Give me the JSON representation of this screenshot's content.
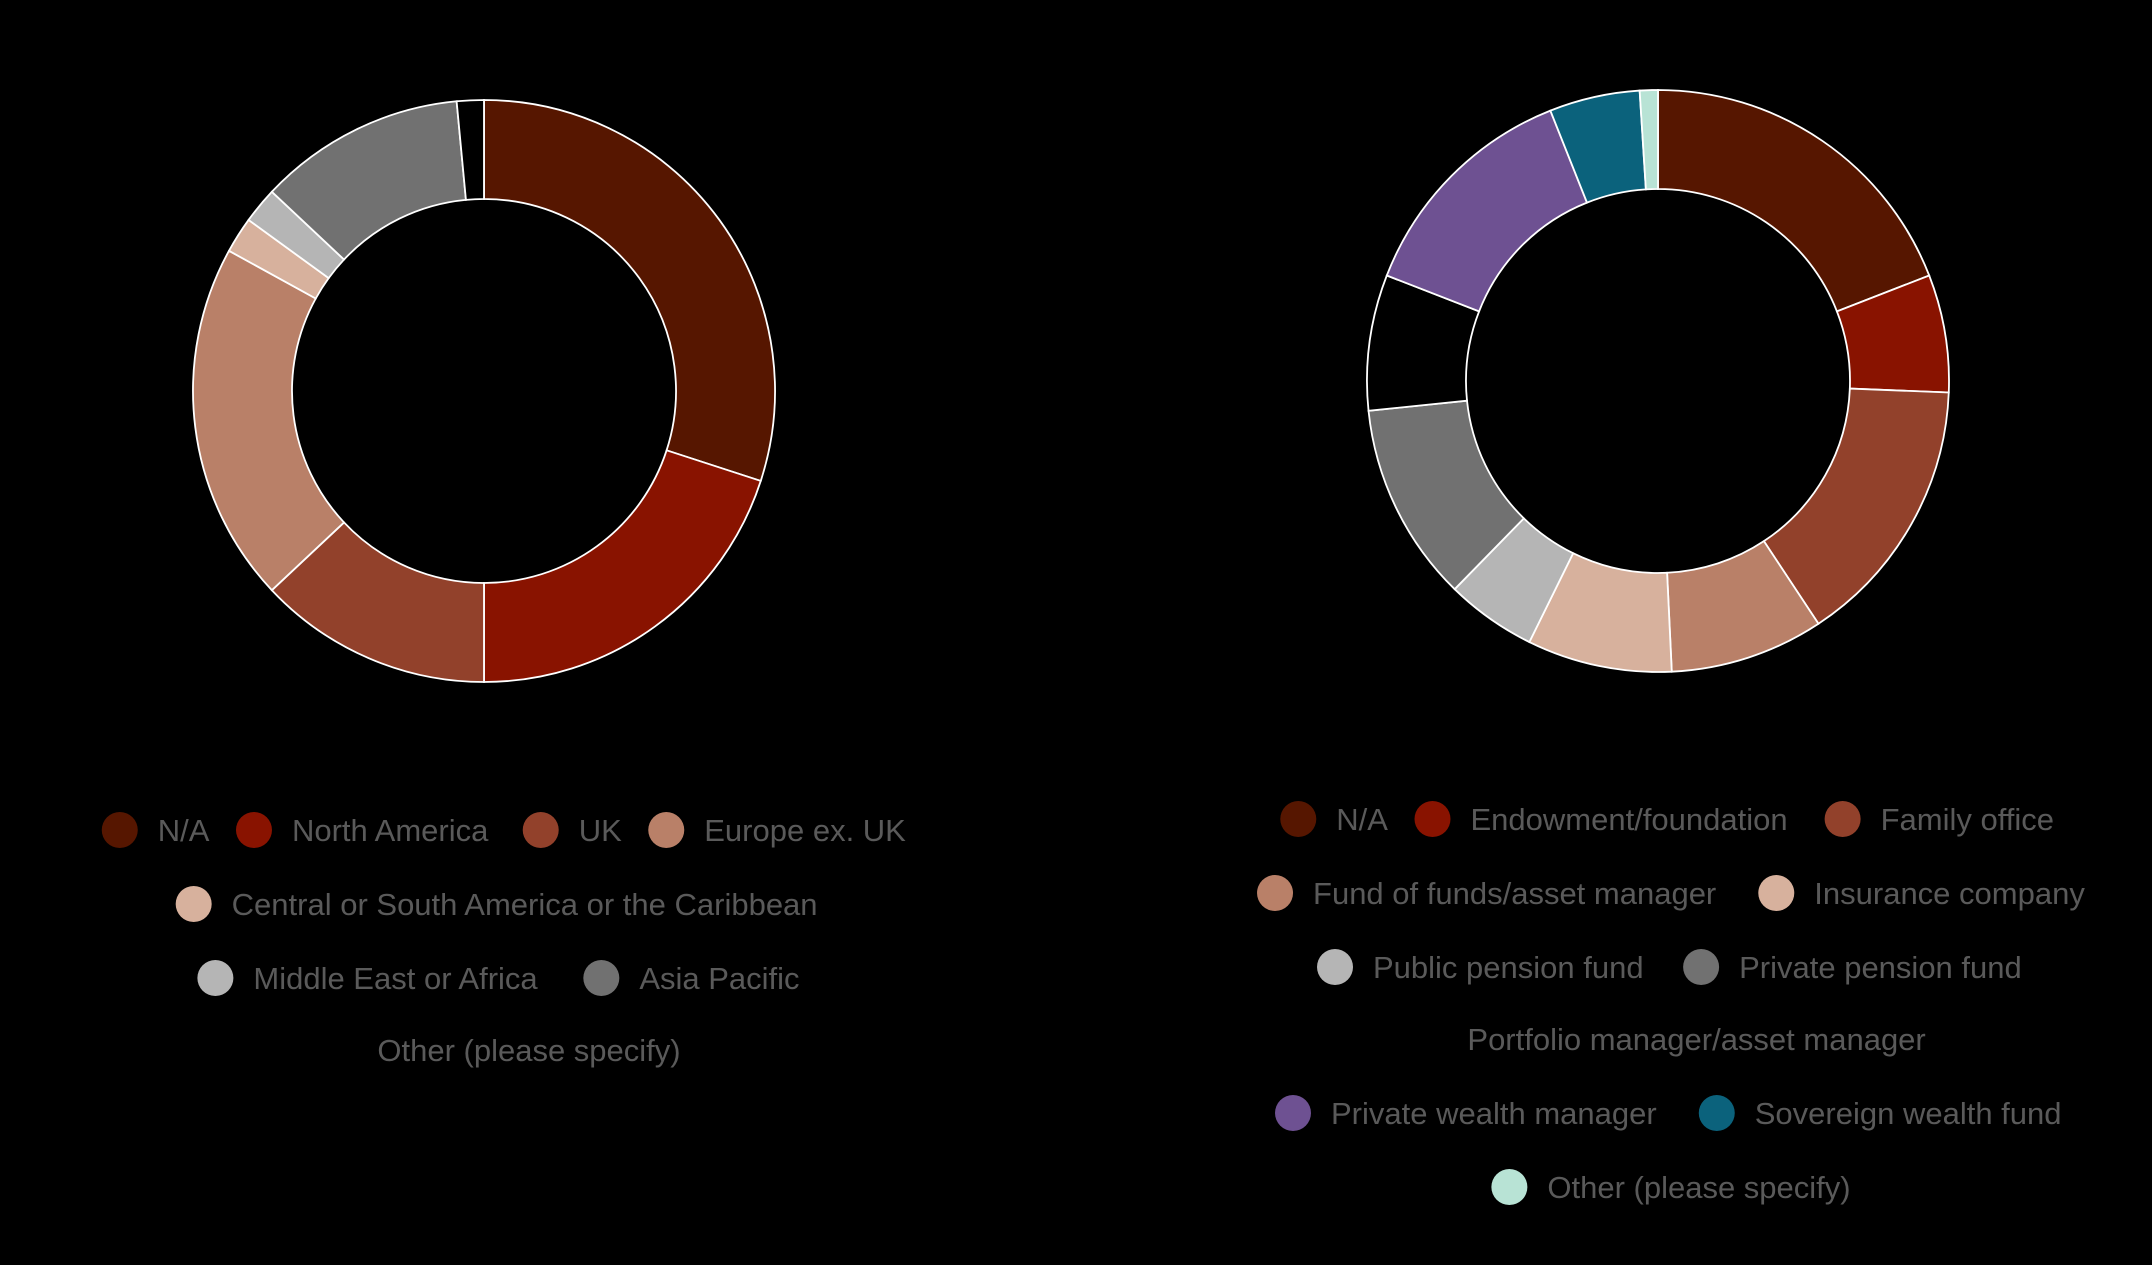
{
  "chart_data": [
    {
      "type": "pie",
      "donut": true,
      "title": "",
      "legend_position": "bottom",
      "categories": [
        "N/A",
        "North America",
        "UK",
        "Europe ex. UK",
        "Central or South America or the Caribbean",
        "Middle East or Africa",
        "Asia Pacific",
        "Other (please specify)"
      ],
      "values": [
        30.0,
        20.0,
        13.0,
        20.0,
        2.0,
        2.0,
        11.5,
        1.5
      ],
      "colors": [
        "#561600",
        "#891300",
        "#92412b",
        "#b98068",
        "#d7b19d",
        "#b5b5b5",
        "#717171",
        "#000000"
      ]
    },
    {
      "type": "pie",
      "donut": true,
      "title": "",
      "legend_position": "bottom",
      "categories": [
        "N/A",
        "Endowment/foundation",
        "Family office",
        "Fund of funds/asset manager",
        "Insurance company",
        "Public pension fund",
        "Private pension fund",
        "Portfolio manager/asset manager",
        "Private wealth manager",
        "Sovereign wealth fund",
        "Other (please specify)"
      ],
      "values": [
        19.0,
        6.5,
        15.0,
        8.5,
        8.0,
        5.0,
        11.0,
        7.5,
        13.0,
        5.0,
        1.0
      ],
      "colors": [
        "#561600",
        "#891300",
        "#92412b",
        "#b98068",
        "#d7b19d",
        "#b5b5b5",
        "#717171",
        "#000000",
        "#6e5192",
        "#0b627c",
        "#b8e3d5"
      ]
    }
  ]
}
